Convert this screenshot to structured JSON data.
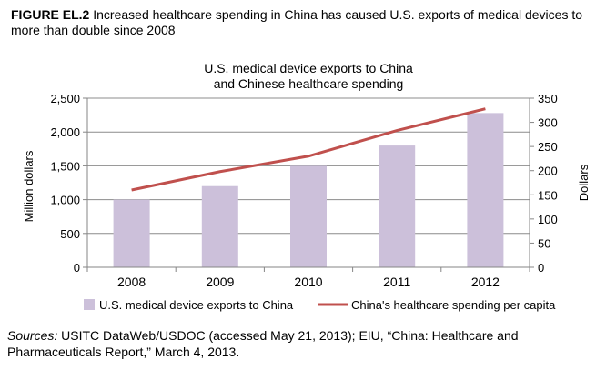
{
  "figure": {
    "label": "FIGURE EL.2",
    "caption": "Increased healthcare spending in China has caused U.S. exports of medical devices to more than double since 2008"
  },
  "sources": {
    "label": "Sources:",
    "text": "USITC DataWeb/USDOC (accessed May 21, 2013); EIU, “China: Healthcare and Pharmaceuticals Report,” March 4, 2013."
  },
  "chart_data": {
    "type": "bar",
    "title_lines": [
      "U.S. medical device exports to China",
      "and Chinese healthcare spending"
    ],
    "categories": [
      "2008",
      "2009",
      "2010",
      "2011",
      "2012"
    ],
    "series": [
      {
        "name": "U.S. medical device exports to China",
        "type": "bar",
        "axis": "left",
        "color": "#ccc0da",
        "values": [
          1000,
          1200,
          1500,
          1800,
          2280
        ]
      },
      {
        "name": "China's healthcare spending per capita",
        "type": "line",
        "axis": "right",
        "color": "#c0504d",
        "values": [
          160,
          198,
          230,
          283,
          328
        ]
      }
    ],
    "y_left": {
      "label": "Million dollars",
      "ylim": [
        0,
        2500
      ],
      "ticks": [
        "0",
        "500",
        "1,000",
        "1,500",
        "2,000",
        "2,500"
      ],
      "tick_values": [
        0,
        500,
        1000,
        1500,
        2000,
        2500
      ]
    },
    "y_right": {
      "label": "Dollars",
      "ylim": [
        0,
        350
      ],
      "ticks": [
        "0",
        "50",
        "100",
        "150",
        "200",
        "250",
        "300",
        "350"
      ],
      "tick_values": [
        0,
        50,
        100,
        150,
        200,
        250,
        300,
        350
      ]
    },
    "grid": true,
    "legend_position": "bottom"
  }
}
